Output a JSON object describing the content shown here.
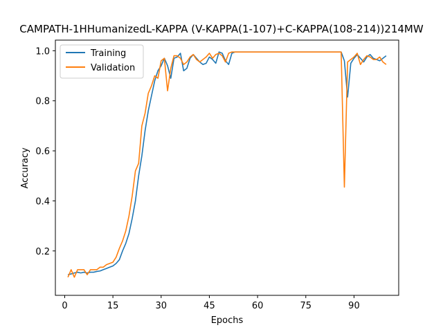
{
  "chart_data": {
    "type": "line",
    "title": "CAMPATH-1HHumanizedL-KAPPA (V-KAPPA(1-107)+C-KAPPA(108-214))214MW",
    "xlabel": "Epochs",
    "ylabel": "Accuracy",
    "xlim": [
      -2.9,
      103.9
    ],
    "ylim": [
      0.0225,
      1.0425
    ],
    "xticks": [
      0,
      15,
      30,
      45,
      60,
      75,
      90
    ],
    "yticks": [
      0.2,
      0.4,
      0.6,
      0.8,
      1.0
    ],
    "grid": false,
    "legend_position": "upper-left",
    "x": [
      1,
      2,
      3,
      4,
      5,
      6,
      7,
      8,
      9,
      10,
      11,
      12,
      13,
      14,
      15,
      16,
      17,
      18,
      19,
      20,
      21,
      22,
      23,
      24,
      25,
      26,
      27,
      28,
      29,
      30,
      31,
      32,
      33,
      34,
      35,
      36,
      37,
      38,
      39,
      40,
      41,
      42,
      43,
      44,
      45,
      46,
      47,
      48,
      49,
      50,
      51,
      52,
      53,
      54,
      55,
      56,
      57,
      58,
      59,
      60,
      61,
      62,
      63,
      64,
      65,
      66,
      67,
      68,
      69,
      70,
      71,
      72,
      73,
      74,
      75,
      76,
      77,
      78,
      79,
      80,
      81,
      82,
      83,
      84,
      85,
      86,
      87,
      88,
      89,
      90,
      91,
      92,
      93,
      94,
      95,
      96,
      97,
      98,
      99,
      100
    ],
    "series": [
      {
        "name": "Training",
        "color": "#1f77b4",
        "values": [
          0.105,
          0.108,
          0.112,
          0.115,
          0.112,
          0.115,
          0.112,
          0.115,
          0.115,
          0.118,
          0.12,
          0.125,
          0.13,
          0.135,
          0.14,
          0.15,
          0.165,
          0.2,
          0.23,
          0.27,
          0.33,
          0.4,
          0.5,
          0.58,
          0.68,
          0.76,
          0.82,
          0.88,
          0.92,
          0.94,
          0.97,
          0.94,
          0.89,
          0.97,
          0.975,
          0.99,
          0.92,
          0.93,
          0.97,
          0.985,
          0.97,
          0.955,
          0.945,
          0.95,
          0.975,
          0.965,
          0.95,
          0.995,
          0.99,
          0.96,
          0.945,
          0.99,
          0.995,
          0.995,
          0.995,
          0.995,
          0.995,
          0.995,
          0.995,
          0.995,
          0.995,
          0.995,
          0.995,
          0.995,
          0.995,
          0.995,
          0.995,
          0.995,
          0.995,
          0.995,
          0.995,
          0.995,
          0.995,
          0.995,
          0.995,
          0.995,
          0.995,
          0.995,
          0.995,
          0.995,
          0.995,
          0.995,
          0.995,
          0.995,
          0.995,
          0.995,
          0.96,
          0.815,
          0.95,
          0.97,
          0.985,
          0.97,
          0.955,
          0.975,
          0.985,
          0.97,
          0.965,
          0.96,
          0.97,
          0.98
        ]
      },
      {
        "name": "Validation",
        "color": "#ff7f0e",
        "values": [
          0.095,
          0.125,
          0.095,
          0.125,
          0.125,
          0.125,
          0.105,
          0.125,
          0.125,
          0.125,
          0.135,
          0.135,
          0.145,
          0.15,
          0.155,
          0.175,
          0.21,
          0.24,
          0.28,
          0.34,
          0.42,
          0.52,
          0.55,
          0.7,
          0.75,
          0.83,
          0.86,
          0.9,
          0.89,
          0.96,
          0.97,
          0.84,
          0.93,
          0.98,
          0.98,
          0.97,
          0.945,
          0.955,
          0.975,
          0.985,
          0.965,
          0.955,
          0.965,
          0.975,
          0.99,
          0.97,
          0.985,
          0.99,
          0.98,
          0.955,
          0.99,
          0.995,
          0.995,
          0.995,
          0.995,
          0.995,
          0.995,
          0.995,
          0.995,
          0.995,
          0.995,
          0.995,
          0.995,
          0.995,
          0.995,
          0.995,
          0.995,
          0.995,
          0.995,
          0.995,
          0.995,
          0.995,
          0.995,
          0.995,
          0.995,
          0.995,
          0.995,
          0.995,
          0.995,
          0.995,
          0.995,
          0.995,
          0.995,
          0.995,
          0.995,
          0.995,
          0.455,
          0.955,
          0.965,
          0.975,
          0.99,
          0.945,
          0.965,
          0.98,
          0.975,
          0.965,
          0.965,
          0.975,
          0.955,
          0.945
        ]
      }
    ]
  }
}
